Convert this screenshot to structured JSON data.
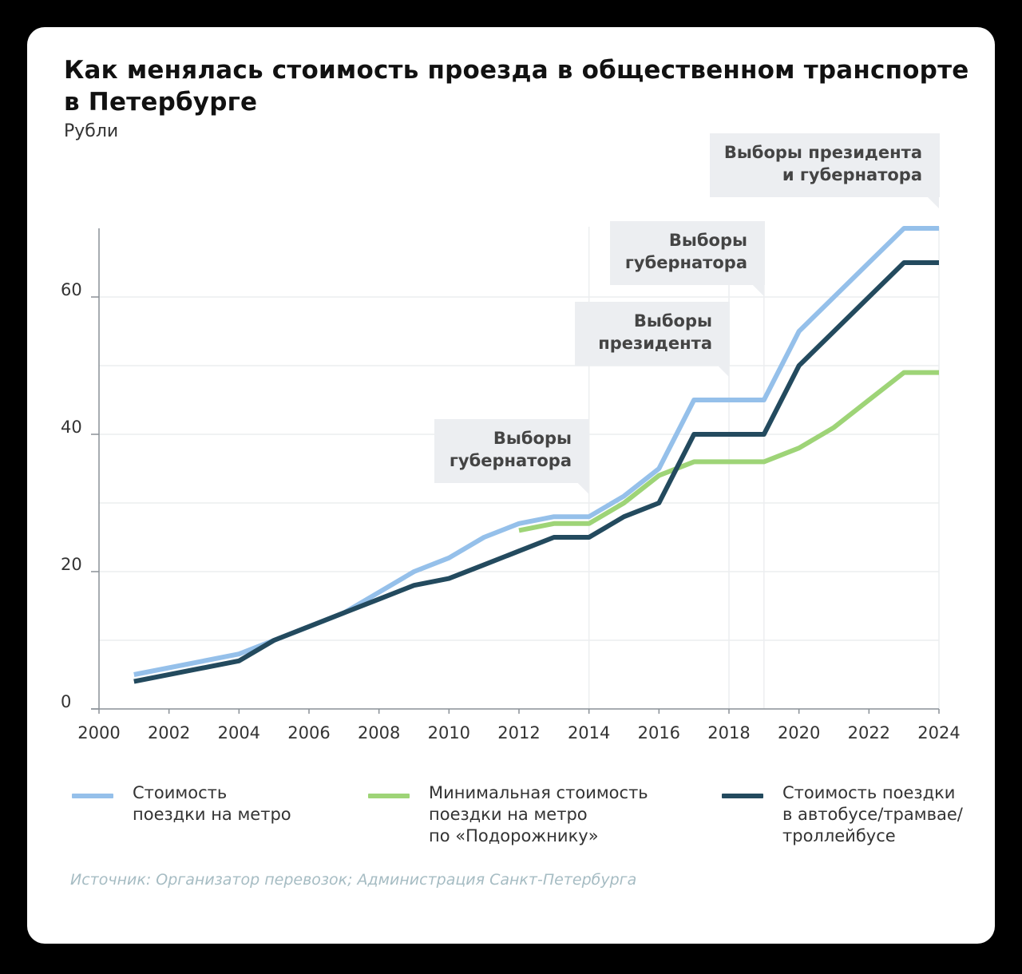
{
  "title": "Как менялась стоимость проезда в общественном транспорте в Петербурге",
  "unit": "Рубли",
  "source": "Источник: Организатор перевозок; Администрация Санкт-Петербурга",
  "chart_data": {
    "type": "line",
    "xlim": [
      2000,
      2024
    ],
    "ylim": [
      0,
      70
    ],
    "x_ticks": [
      2000,
      2002,
      2004,
      2006,
      2008,
      2010,
      2012,
      2014,
      2016,
      2018,
      2020,
      2022,
      2024
    ],
    "y_ticks": [
      0,
      20,
      40,
      60
    ],
    "y_grid": [
      0,
      10,
      20,
      30,
      40,
      50,
      60
    ],
    "legend_position": "bottom",
    "series": [
      {
        "name": "Стоимость поездки на метро",
        "legend_label": "Стоимость\nпоездки на метро",
        "color": "#95c0ea",
        "x": [
          2001,
          2004,
          2005,
          2006,
          2007,
          2008,
          2009,
          2010,
          2011,
          2012,
          2013,
          2014,
          2015,
          2016,
          2017,
          2018,
          2019,
          2020,
          2021,
          2022,
          2023,
          2024
        ],
        "values": [
          5,
          8,
          10,
          12,
          14,
          17,
          20,
          22,
          25,
          27,
          28,
          28,
          31,
          35,
          45,
          45,
          45,
          55,
          60,
          65,
          70,
          70
        ]
      },
      {
        "name": "Минимальная стоимость поездки на метро по «Подорожнику»",
        "legend_label": "Минимальная стоимость\nпоездки на метро\nпо «Подорожнику»",
        "color": "#9ed477",
        "x": [
          2012,
          2013,
          2014,
          2015,
          2016,
          2017,
          2018,
          2019,
          2020,
          2021,
          2022,
          2023,
          2024
        ],
        "values": [
          26,
          27,
          27,
          30,
          34,
          36,
          36,
          36,
          38,
          41,
          45,
          49,
          49
        ]
      },
      {
        "name": "Стоимость поездки в автобусе/трамвае/троллейбусе",
        "legend_label": "Стоимость поездки\nв автобусе/трамвае/\nтроллейбусе",
        "color": "#234a5e",
        "x": [
          2001,
          2004,
          2005,
          2006,
          2007,
          2008,
          2009,
          2010,
          2011,
          2012,
          2013,
          2014,
          2015,
          2016,
          2017,
          2018,
          2019,
          2020,
          2021,
          2022,
          2023,
          2024
        ],
        "values": [
          4,
          7,
          10,
          12,
          14,
          16,
          18,
          19,
          21,
          23,
          25,
          25,
          28,
          30,
          40,
          40,
          40,
          50,
          55,
          60,
          65,
          65
        ]
      }
    ],
    "annotations": [
      {
        "x": 2014,
        "lines": [
          "Выборы",
          "губернатора"
        ]
      },
      {
        "x": 2018,
        "lines": [
          "Выборы",
          "президента"
        ]
      },
      {
        "x": 2019,
        "lines": [
          "Выборы",
          "губернатора"
        ]
      },
      {
        "x": 2024,
        "lines": [
          "Выборы президента",
          "и губернатора"
        ]
      }
    ]
  }
}
